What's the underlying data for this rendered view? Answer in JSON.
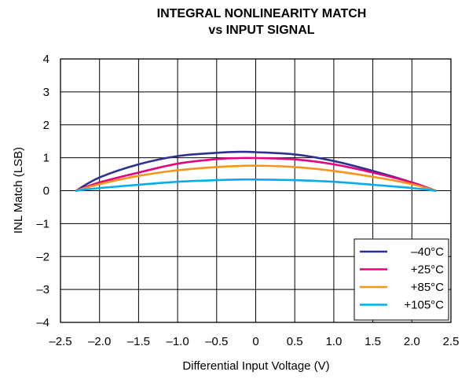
{
  "chart_data": {
    "type": "line",
    "title": [
      "INTEGRAL NONLINEARITY MATCH",
      "vs INPUT SIGNAL"
    ],
    "xlabel": "Differential Input Voltage (V)",
    "ylabel": "INL Match (LSB)",
    "xlim": [
      -2.5,
      2.5
    ],
    "ylim": [
      -4,
      4
    ],
    "xticks": [
      -2.5,
      -2.0,
      -1.5,
      -1.0,
      -0.5,
      0,
      0.5,
      1.0,
      1.5,
      2.0,
      2.5
    ],
    "xtick_labels": [
      "–2.5",
      "–2.0",
      "–1.5",
      "–1.0",
      "–0.5",
      "0",
      "0.5",
      "1.0",
      "1.5",
      "2.0",
      "2.5"
    ],
    "yticks": [
      -4,
      -3,
      -2,
      -1,
      0,
      1,
      2,
      3,
      4
    ],
    "ytick_labels": [
      "–4",
      "–3",
      "–2",
      "–1",
      "0",
      "1",
      "2",
      "3",
      "4"
    ],
    "grid": true,
    "legend_position": "bottom-right",
    "x": [
      -2.3,
      -2.0,
      -1.5,
      -1.0,
      -0.5,
      -0.2,
      0,
      0.5,
      1.0,
      1.5,
      2.0,
      2.3
    ],
    "series": [
      {
        "name": "–40°C",
        "color": "#2e3192",
        "values": [
          0.0,
          0.4,
          0.8,
          1.05,
          1.15,
          1.18,
          1.17,
          1.1,
          0.9,
          0.6,
          0.25,
          0.0
        ]
      },
      {
        "name": "+25°C",
        "color": "#e6007e",
        "values": [
          0.0,
          0.25,
          0.55,
          0.82,
          0.96,
          0.99,
          0.99,
          0.95,
          0.8,
          0.55,
          0.25,
          0.0
        ]
      },
      {
        "name": "+85°C",
        "color": "#f7941d",
        "values": [
          0.0,
          0.2,
          0.45,
          0.62,
          0.72,
          0.75,
          0.76,
          0.72,
          0.6,
          0.42,
          0.2,
          0.0
        ]
      },
      {
        "name": "+105°C",
        "color": "#00aeef",
        "values": [
          0.0,
          0.08,
          0.18,
          0.27,
          0.32,
          0.34,
          0.34,
          0.32,
          0.27,
          0.18,
          0.08,
          0.0
        ]
      }
    ]
  }
}
